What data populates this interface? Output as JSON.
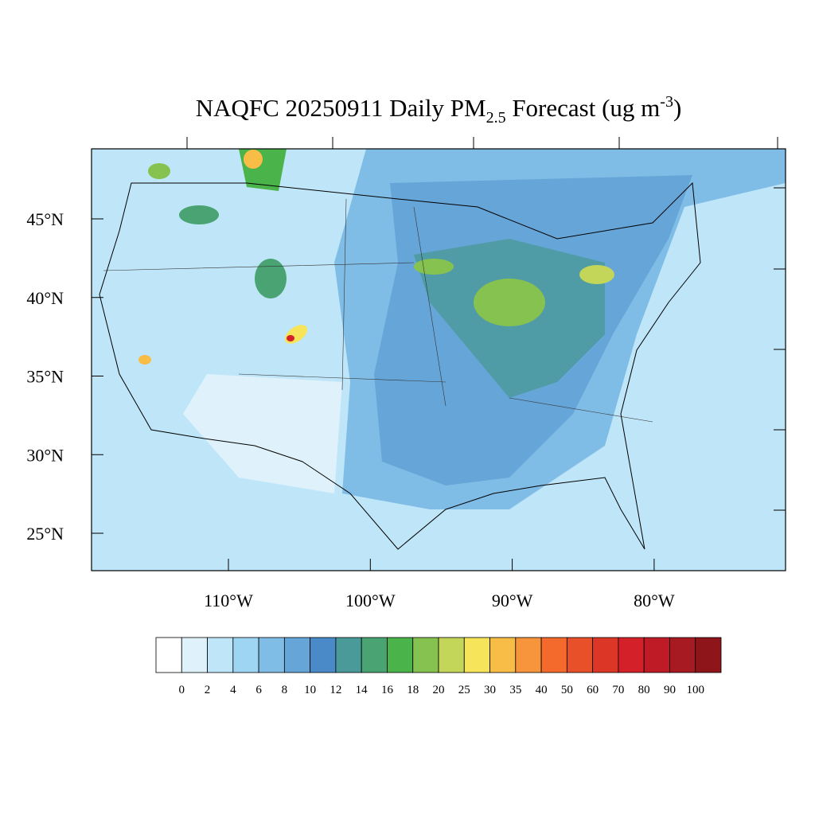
{
  "map": {
    "title": {
      "main": "NAQFC 20250911 Daily PM",
      "sub": "2.5",
      "rest": " Forecast (ug m",
      "sup": "-3",
      "end": ")"
    },
    "lat_ticks": [
      {
        "value": 45,
        "label": "45°N"
      },
      {
        "value": 40,
        "label": "40°N"
      },
      {
        "value": 35,
        "label": "35°N"
      },
      {
        "value": 30,
        "label": "30°N"
      },
      {
        "value": 25,
        "label": "25°N"
      }
    ],
    "lon_ticks": [
      {
        "value": -110,
        "label": "110°W"
      },
      {
        "value": -100,
        "label": "100°W"
      },
      {
        "value": -90,
        "label": "90°W"
      },
      {
        "value": -80,
        "label": "80°W"
      }
    ],
    "colorbar": {
      "levels": [
        0,
        2,
        4,
        6,
        8,
        10,
        12,
        14,
        16,
        18,
        20,
        25,
        30,
        35,
        40,
        50,
        60,
        70,
        80,
        90,
        100
      ],
      "colors": [
        "#ffffff",
        "#dff2fb",
        "#bfe6f8",
        "#9dd5f3",
        "#80bde6",
        "#66a5d8",
        "#4a8ac8",
        "#4a9a9a",
        "#4aa372",
        "#4ab34a",
        "#86c24f",
        "#c4d65a",
        "#f6e55a",
        "#f8bd47",
        "#f7953c",
        "#f36a2c",
        "#e8502a",
        "#dc3626",
        "#d42129",
        "#bf1b27",
        "#a81a22",
        "#8e1519"
      ]
    }
  }
}
